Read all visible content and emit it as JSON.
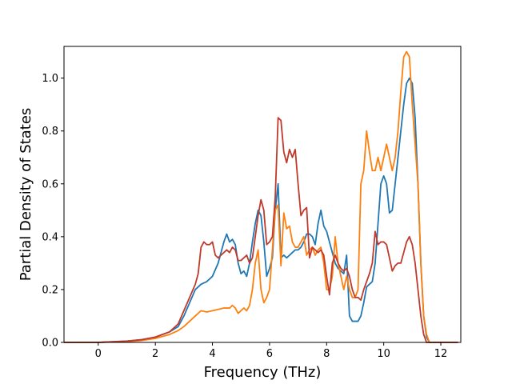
{
  "chart_data": {
    "type": "line",
    "title": "",
    "xlabel": "Frequency (THz)",
    "ylabel": "Partial Density of States",
    "xlim": [
      -1.2,
      12.7
    ],
    "ylim": [
      0.0,
      1.12
    ],
    "xticks": [
      0,
      2,
      4,
      6,
      8,
      10,
      12
    ],
    "yticks": [
      0.0,
      0.2,
      0.4,
      0.6,
      0.8,
      1.0
    ],
    "xtick_labels": [
      "0",
      "2",
      "4",
      "6",
      "8",
      "10",
      "12"
    ],
    "ytick_labels": [
      "0.0",
      "0.2",
      "0.4",
      "0.6",
      "0.8",
      "1.0"
    ],
    "grid": false,
    "legend": "none",
    "series": [
      {
        "color": "#1f77b4",
        "x": [
          -1.2,
          0.0,
          1.0,
          1.5,
          2.0,
          2.5,
          2.8,
          3.0,
          3.2,
          3.4,
          3.6,
          3.8,
          4.0,
          4.2,
          4.4,
          4.5,
          4.6,
          4.7,
          4.8,
          4.9,
          5.0,
          5.1,
          5.2,
          5.3,
          5.4,
          5.5,
          5.6,
          5.7,
          5.8,
          5.9,
          6.0,
          6.1,
          6.2,
          6.3,
          6.4,
          6.5,
          6.6,
          6.7,
          6.8,
          6.9,
          7.0,
          7.1,
          7.2,
          7.3,
          7.4,
          7.5,
          7.6,
          7.7,
          7.8,
          7.9,
          8.0,
          8.1,
          8.2,
          8.3,
          8.4,
          8.5,
          8.6,
          8.7,
          8.8,
          8.9,
          9.0,
          9.1,
          9.2,
          9.3,
          9.4,
          9.5,
          9.6,
          9.7,
          9.8,
          9.9,
          10.0,
          10.1,
          10.2,
          10.3,
          10.4,
          10.5,
          10.6,
          10.7,
          10.8,
          10.9,
          11.0,
          11.1,
          11.2,
          11.3,
          11.4,
          11.5,
          11.6,
          12.6
        ],
        "y": [
          0.0,
          0.0,
          0.005,
          0.01,
          0.02,
          0.04,
          0.06,
          0.1,
          0.15,
          0.2,
          0.22,
          0.23,
          0.25,
          0.3,
          0.38,
          0.41,
          0.38,
          0.39,
          0.37,
          0.3,
          0.26,
          0.27,
          0.25,
          0.3,
          0.38,
          0.45,
          0.5,
          0.48,
          0.38,
          0.25,
          0.28,
          0.32,
          0.5,
          0.6,
          0.32,
          0.33,
          0.32,
          0.33,
          0.34,
          0.35,
          0.35,
          0.36,
          0.38,
          0.41,
          0.41,
          0.4,
          0.37,
          0.45,
          0.5,
          0.44,
          0.42,
          0.38,
          0.34,
          0.3,
          0.28,
          0.27,
          0.26,
          0.33,
          0.1,
          0.08,
          0.08,
          0.08,
          0.1,
          0.15,
          0.21,
          0.22,
          0.23,
          0.3,
          0.45,
          0.6,
          0.63,
          0.6,
          0.49,
          0.5,
          0.6,
          0.7,
          0.8,
          0.9,
          0.98,
          1.0,
          0.98,
          0.85,
          0.6,
          0.3,
          0.1,
          0.02,
          0.0,
          0.0
        ]
      },
      {
        "color": "#ff7f0e",
        "x": [
          -1.2,
          0.0,
          1.0,
          1.5,
          2.0,
          2.5,
          2.8,
          3.0,
          3.2,
          3.4,
          3.6,
          3.8,
          4.0,
          4.2,
          4.4,
          4.6,
          4.7,
          4.8,
          4.9,
          5.0,
          5.1,
          5.2,
          5.3,
          5.4,
          5.5,
          5.6,
          5.7,
          5.8,
          5.9,
          6.0,
          6.1,
          6.2,
          6.3,
          6.4,
          6.5,
          6.6,
          6.7,
          6.8,
          6.9,
          7.0,
          7.1,
          7.2,
          7.3,
          7.4,
          7.5,
          7.6,
          7.7,
          7.8,
          7.9,
          8.0,
          8.1,
          8.2,
          8.3,
          8.4,
          8.5,
          8.6,
          8.7,
          8.8,
          8.9,
          9.0,
          9.1,
          9.2,
          9.3,
          9.4,
          9.5,
          9.6,
          9.7,
          9.8,
          9.9,
          10.0,
          10.1,
          10.2,
          10.3,
          10.4,
          10.5,
          10.6,
          10.7,
          10.8,
          10.9,
          11.0,
          11.1,
          11.2,
          11.3,
          11.4,
          11.5,
          11.6,
          12.6
        ],
        "y": [
          0.0,
          0.0,
          0.003,
          0.007,
          0.015,
          0.03,
          0.045,
          0.06,
          0.08,
          0.1,
          0.12,
          0.115,
          0.12,
          0.125,
          0.13,
          0.13,
          0.14,
          0.13,
          0.11,
          0.12,
          0.13,
          0.12,
          0.14,
          0.2,
          0.3,
          0.35,
          0.2,
          0.15,
          0.17,
          0.2,
          0.35,
          0.5,
          0.52,
          0.29,
          0.49,
          0.43,
          0.44,
          0.38,
          0.36,
          0.36,
          0.38,
          0.4,
          0.33,
          0.35,
          0.36,
          0.33,
          0.35,
          0.36,
          0.3,
          0.2,
          0.2,
          0.25,
          0.4,
          0.3,
          0.25,
          0.2,
          0.25,
          0.2,
          0.17,
          0.17,
          0.2,
          0.6,
          0.65,
          0.8,
          0.72,
          0.65,
          0.65,
          0.7,
          0.65,
          0.7,
          0.75,
          0.7,
          0.65,
          0.7,
          0.8,
          0.95,
          1.08,
          1.1,
          1.08,
          0.9,
          0.75,
          0.6,
          0.3,
          0.1,
          0.03,
          0.0,
          0.0
        ]
      },
      {
        "color": "#c0392b",
        "x": [
          -1.2,
          0.0,
          1.0,
          1.5,
          2.0,
          2.5,
          2.8,
          3.0,
          3.2,
          3.4,
          3.5,
          3.6,
          3.7,
          3.8,
          3.9,
          4.0,
          4.1,
          4.2,
          4.3,
          4.4,
          4.5,
          4.6,
          4.7,
          4.8,
          4.9,
          5.0,
          5.1,
          5.2,
          5.3,
          5.4,
          5.5,
          5.6,
          5.7,
          5.8,
          5.9,
          6.0,
          6.1,
          6.2,
          6.3,
          6.4,
          6.5,
          6.6,
          6.7,
          6.8,
          6.9,
          7.0,
          7.1,
          7.2,
          7.3,
          7.4,
          7.5,
          7.6,
          7.7,
          7.8,
          7.9,
          8.0,
          8.1,
          8.2,
          8.3,
          8.4,
          8.5,
          8.6,
          8.7,
          8.8,
          8.9,
          9.0,
          9.1,
          9.2,
          9.3,
          9.4,
          9.5,
          9.6,
          9.7,
          9.8,
          9.9,
          10.0,
          10.1,
          10.2,
          10.3,
          10.4,
          10.5,
          10.6,
          10.7,
          10.8,
          10.9,
          11.0,
          11.1,
          11.2,
          11.3,
          11.4,
          11.5,
          11.6,
          12.6
        ],
        "y": [
          0.0,
          0.0,
          0.005,
          0.01,
          0.02,
          0.04,
          0.07,
          0.12,
          0.17,
          0.22,
          0.26,
          0.36,
          0.38,
          0.37,
          0.37,
          0.38,
          0.33,
          0.32,
          0.33,
          0.34,
          0.35,
          0.34,
          0.36,
          0.35,
          0.31,
          0.31,
          0.32,
          0.33,
          0.3,
          0.32,
          0.4,
          0.48,
          0.54,
          0.5,
          0.37,
          0.38,
          0.4,
          0.55,
          0.85,
          0.84,
          0.72,
          0.68,
          0.73,
          0.7,
          0.73,
          0.6,
          0.48,
          0.5,
          0.51,
          0.32,
          0.36,
          0.35,
          0.34,
          0.35,
          0.33,
          0.25,
          0.18,
          0.3,
          0.33,
          0.3,
          0.28,
          0.27,
          0.28,
          0.25,
          0.2,
          0.17,
          0.17,
          0.16,
          0.2,
          0.23,
          0.26,
          0.3,
          0.42,
          0.37,
          0.38,
          0.38,
          0.37,
          0.32,
          0.27,
          0.29,
          0.3,
          0.3,
          0.34,
          0.38,
          0.4,
          0.37,
          0.3,
          0.2,
          0.1,
          0.03,
          0.0,
          0.0,
          0.0
        ]
      }
    ]
  }
}
